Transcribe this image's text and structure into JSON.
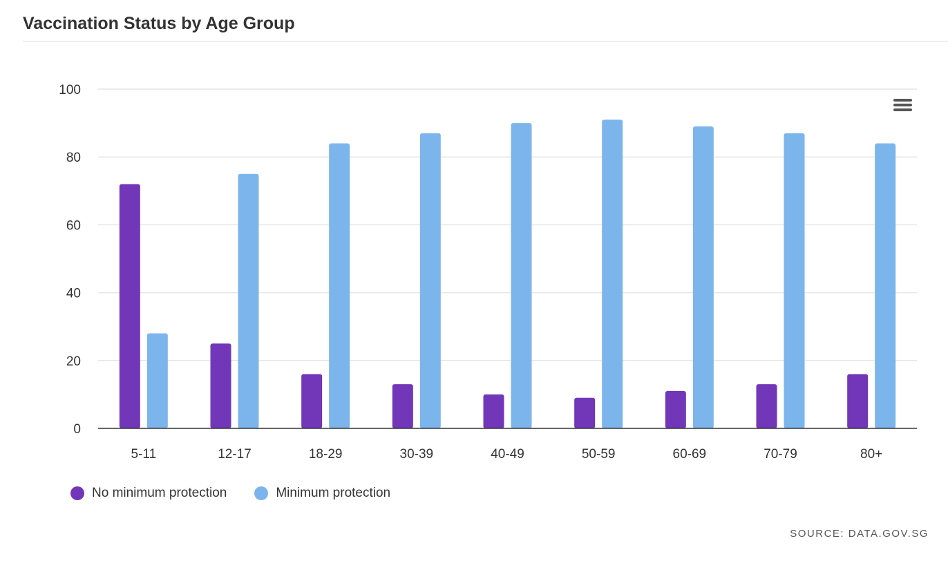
{
  "title": "Vaccination Status by Age Group",
  "source": "SOURCE: DATA.GOV.SG",
  "menu_icon": "hamburger-menu-icon",
  "colors": {
    "series_0": "#7236b8",
    "series_1": "#7cb5ec",
    "grid": "#e6e6e6",
    "axis": "#333333"
  },
  "chart_data": {
    "type": "bar",
    "categories": [
      "5-11",
      "12-17",
      "18-29",
      "30-39",
      "40-49",
      "50-59",
      "60-69",
      "70-79",
      "80+"
    ],
    "series": [
      {
        "name": "No minimum protection",
        "values": [
          72,
          25,
          16,
          13,
          10,
          9,
          11,
          13,
          16
        ]
      },
      {
        "name": "Minimum protection",
        "values": [
          28,
          75,
          84,
          87,
          90,
          91,
          89,
          87,
          84
        ]
      }
    ],
    "ylim": [
      0,
      100
    ],
    "yticks": [
      0,
      20,
      40,
      60,
      80,
      100
    ],
    "xlabel": "",
    "ylabel": "",
    "grid": true,
    "legend": "bottom-left"
  }
}
